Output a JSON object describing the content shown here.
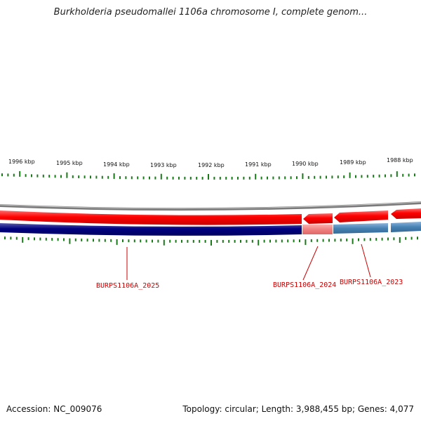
{
  "title": "Burkholderia pseudomallei 1106a chromosome I, complete genom...",
  "footer": {
    "accession": "Accession: NC_009076",
    "summary": "Topology: circular; Length: 3,988,455 bp; Genes: 4,077"
  },
  "scale_labels": [
    "1996 kbp",
    "1995 kbp",
    "1994 kbp",
    "1993 kbp",
    "1992 kbp",
    "1991 kbp",
    "1990 kbp",
    "1989 kbp",
    "1988 kbp"
  ],
  "genes": [
    {
      "name": "BURPS1106A_2025"
    },
    {
      "name": "BURPS1106A_2024"
    },
    {
      "name": "BURPS1106A_2023"
    }
  ],
  "colors": {
    "backbone": "#7a7a7a",
    "cds": "#ff0000",
    "gene": "#000080",
    "highlight_cds": "#f08080",
    "neighbor_gene": "#4682b4",
    "ticks": "#1a7a1a",
    "label": "#cc0000"
  }
}
